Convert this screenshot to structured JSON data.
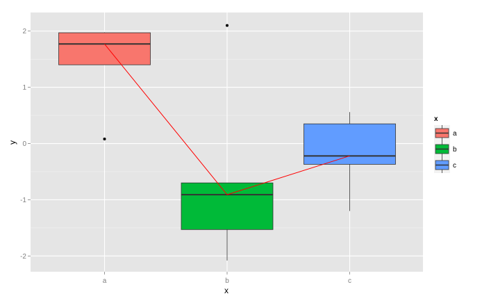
{
  "chart_data": {
    "type": "boxplot",
    "title": "",
    "xlabel": "x",
    "ylabel": "y",
    "categories": [
      "a",
      "b",
      "c"
    ],
    "ylim": [
      -2.28,
      2.33
    ],
    "y_ticks": [
      -2,
      -1,
      0,
      1,
      2
    ],
    "grid": true,
    "legend": {
      "title": "x",
      "position": "right",
      "entries": [
        "a",
        "b",
        "c"
      ]
    },
    "colors": {
      "a": "#F8766D",
      "b": "#00BA38",
      "c": "#619CFF",
      "mean_line": "#FF0000",
      "panel": "#E5E5E5",
      "grid": "#FFFFFF"
    },
    "series": [
      {
        "name": "a",
        "category": "a",
        "whisker_low": 1.4,
        "q1": 1.4,
        "median": 1.77,
        "q3": 1.97,
        "whisker_high": 1.98,
        "outliers": [
          0.08
        ]
      },
      {
        "name": "b",
        "category": "b",
        "whisker_low": -2.08,
        "q1": -1.53,
        "median": -0.91,
        "q3": -0.7,
        "whisker_high": -0.7,
        "outliers": [
          2.1
        ]
      },
      {
        "name": "c",
        "category": "c",
        "whisker_low": -1.2,
        "q1": -0.37,
        "median": -0.22,
        "q3": 0.35,
        "whisker_high": 0.56,
        "outliers": []
      }
    ],
    "line": {
      "name": "median-connector",
      "x": [
        "a",
        "b",
        "c"
      ],
      "y": [
        1.77,
        -0.91,
        -0.22
      ]
    }
  }
}
